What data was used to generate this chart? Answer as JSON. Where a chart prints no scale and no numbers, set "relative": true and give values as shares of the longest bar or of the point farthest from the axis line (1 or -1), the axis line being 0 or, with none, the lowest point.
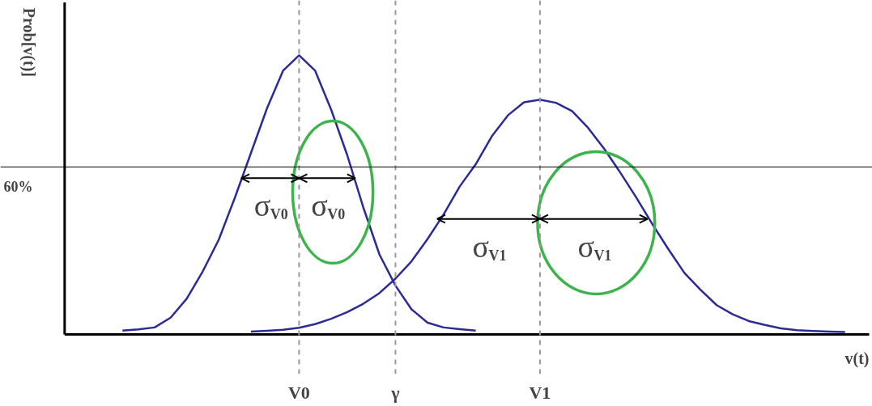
{
  "chart_data": {
    "type": "line",
    "relative": true,
    "xlabel": "v(t)",
    "ylabel": "Prob[v(t)]",
    "categories": [
      null,
      null,
      null,
      null,
      null,
      null,
      null,
      null,
      null,
      null,
      null,
      null,
      null,
      null,
      "V0",
      null,
      null,
      null,
      null,
      null,
      "γ",
      null,
      null,
      null,
      null,
      null,
      null,
      null,
      null,
      "V1",
      null,
      null,
      null,
      null,
      null,
      null,
      null,
      null,
      null,
      null,
      null,
      null,
      null,
      null,
      null,
      null,
      null,
      null,
      null
    ],
    "series": [
      {
        "color": "#2b2b96",
        "values": [
          null,
          null,
          null,
          0.014,
          0.018,
          0.025,
          0.06,
          0.128,
          0.226,
          0.34,
          0.49,
          0.65,
          0.81,
          0.945,
          1.0,
          0.945,
          0.805,
          0.642,
          0.455,
          0.287,
          0.175,
          0.09,
          0.042,
          0.025,
          0.019,
          0.014,
          null,
          null,
          null,
          null,
          null,
          null,
          null,
          null,
          null,
          null,
          null,
          null,
          null,
          null,
          null,
          null,
          null,
          null,
          null,
          null,
          null,
          null,
          null
        ]
      },
      {
        "color": "#2b2b96",
        "values": [
          null,
          null,
          null,
          null,
          null,
          null,
          null,
          null,
          null,
          null,
          null,
          0.01,
          0.013,
          0.017,
          0.024,
          0.037,
          0.056,
          0.08,
          0.11,
          0.148,
          0.2,
          0.262,
          0.342,
          0.43,
          0.53,
          0.61,
          0.71,
          0.785,
          0.832,
          0.841,
          0.83,
          0.8,
          0.74,
          0.665,
          0.58,
          0.49,
          0.395,
          0.305,
          0.22,
          0.16,
          0.105,
          0.072,
          0.048,
          0.034,
          0.022,
          0.015,
          0.012,
          0.01,
          0.009
        ]
      }
    ],
    "ref_lines": [
      {
        "axis": "x",
        "value": "V0",
        "color": "#999999",
        "line_style": "dashed"
      },
      {
        "axis": "x",
        "value": "γ",
        "color": "#999999",
        "line_style": "dashed"
      },
      {
        "axis": "x",
        "value": "V1",
        "color": "#999999",
        "line_style": "dashed"
      },
      {
        "axis": "y",
        "value": 0.6,
        "label": "60%",
        "color": "#000000",
        "line_style": "solid"
      }
    ],
    "annotations": [
      "σ$_{V0}$",
      "σ$_{V0}$",
      "σ$_{V1}$",
      "σ$_{V1}$"
    ]
  }
}
